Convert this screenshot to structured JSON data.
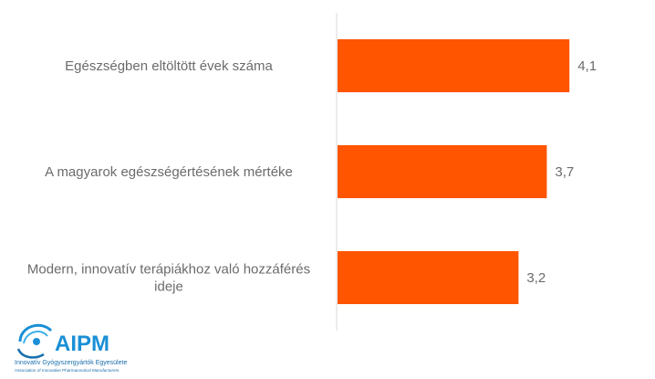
{
  "chart_data": {
    "type": "bar",
    "orientation": "horizontal",
    "title": "",
    "xlabel": "",
    "ylabel": "",
    "categories": [
      "Egészségben eltöltött évek száma",
      "A magyarok egészségértésének mértéke",
      "Modern, innovatív terápiákhoz való hozzáférés ideje"
    ],
    "category_lines": [
      [
        "Egészségben eltöltött évek száma"
      ],
      [
        "A magyarok egészségértésének mértéke"
      ],
      [
        "Modern, innovatív terápiákhoz való hozzáférés",
        "ideje"
      ]
    ],
    "values": [
      4.1,
      3.7,
      3.2
    ],
    "value_labels": [
      "4,1",
      "3,7",
      "3,2"
    ],
    "xlim": [
      0,
      5
    ],
    "grid": false,
    "bar_color": "#ff5500",
    "axis_color": "#d9d9d9"
  },
  "logo": {
    "name": "AIPM",
    "subtitle": "Innovatív Gyógyszergyártók Egyesülete",
    "subtitle_en": "Association of Innovative Pharmaceutical Manufacturers",
    "color": "#1a8fd6"
  }
}
